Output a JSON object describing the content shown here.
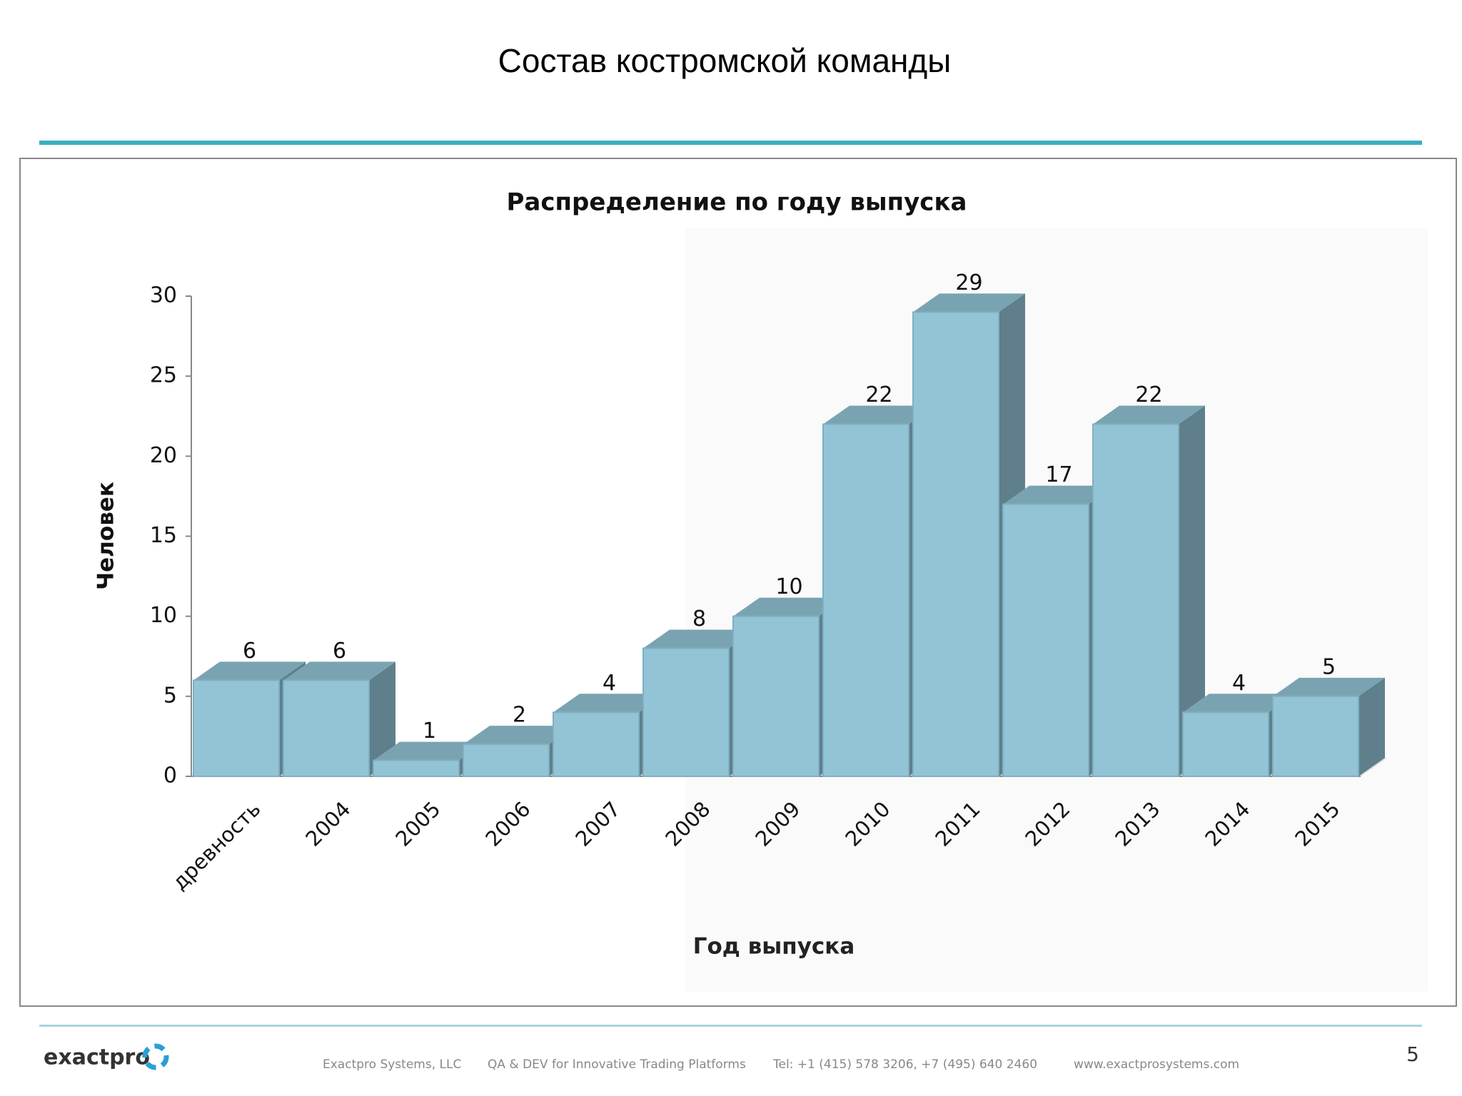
{
  "slide_title": "Состав костромской команды",
  "chart_data": {
    "type": "bar3d",
    "title": "Распределение по году выпуска",
    "x_label": "Год выпуска",
    "y_label": "Человек",
    "categories": [
      "древность",
      "2004",
      "2005",
      "2006",
      "2007",
      "2008",
      "2009",
      "2010",
      "2011",
      "2012",
      "2013",
      "2014",
      "2015"
    ],
    "values": [
      6,
      6,
      1,
      2,
      4,
      8,
      10,
      22,
      29,
      17,
      22,
      4,
      5
    ],
    "color": "#93c4d6",
    "ylim": [
      0,
      30
    ],
    "yticks": [
      0,
      5,
      10,
      15,
      20,
      25,
      30
    ]
  },
  "footer": {
    "logo": "exactpro",
    "company": "Exactpro Systems, LLC",
    "slogan": "QA & DEV for Innovative Trading Platforms",
    "phone": "Tel: +1 (415) 578 3206, +7 (495) 640 2460",
    "website": "www.exactprosystems.com"
  },
  "page_number": 5
}
